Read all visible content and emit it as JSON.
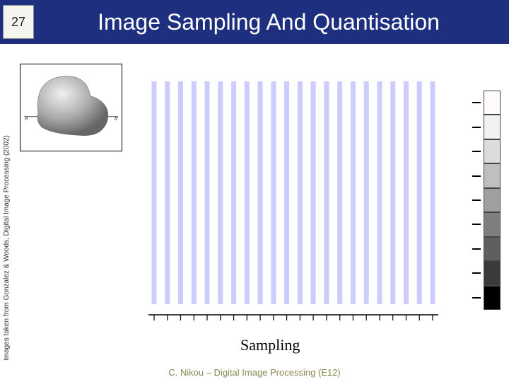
{
  "header": {
    "page_number": "27",
    "title": "Image Sampling And Quantisation",
    "bg_color": "#1f2f7f",
    "title_color": "#ffffff"
  },
  "sidebar": {
    "credit": "Images taken from Gonzalez & Woods, Digital Image Processing (2002)"
  },
  "sampling_chart": {
    "label": "Sampling",
    "bar_count": 22,
    "bar_color": "#ccccff",
    "axis_color": "#000000",
    "tick_count_x": 22
  },
  "gray_scale": {
    "levels": 9,
    "colors": [
      "#fdf9fd",
      "#f2f2f2",
      "#dcdcdc",
      "#bfbfbf",
      "#9f9f9f",
      "#7f7f7f",
      "#5f5f5f",
      "#3a3a3a",
      "#000000"
    ]
  },
  "footer": {
    "text": "C. Nikou – Digital Image Processing (E12)",
    "color": "#8a8a55"
  }
}
